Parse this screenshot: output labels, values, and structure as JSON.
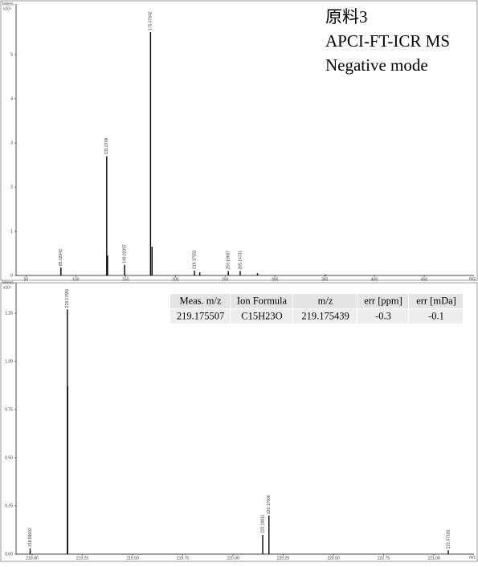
{
  "chart_data": [
    {
      "type": "spectrum",
      "annotations": [
        "原料3",
        "APCI-FT-ICR MS",
        "Negative mode"
      ],
      "y_label": "Intens.",
      "y_multiplier": "x10⁵",
      "x_label": "m/z",
      "color": "#000000",
      "xlim": [
        40,
        500
      ],
      "ylim": [
        0,
        6
      ],
      "xticks": [
        50,
        100,
        150,
        200,
        250,
        300,
        350,
        400,
        450
      ],
      "yticks": [
        0,
        1,
        2,
        3,
        4,
        5
      ],
      "peaks": {
        "x": [
          85.02943,
          131.0708,
          149.02397,
          175.07642,
          219.17551,
          253.19667,
          265.14731
        ],
        "values": [
          0.18,
          2.7,
          0.24,
          5.51,
          0.11,
          0.1,
          0.1
        ]
      },
      "minor_peaks": {
        "x": [
          131.9,
          176.6,
          224.5,
          282.5,
          351
        ],
        "values": [
          0.45,
          0.65,
          0.07,
          0.05,
          0.02
        ]
      }
    },
    {
      "type": "spectrum",
      "y_label": "Intens.",
      "y_multiplier": "x10⁴",
      "x_label": "m/z",
      "color": "#000000",
      "xlim": [
        218.92,
        221.2
      ],
      "ylim": [
        0,
        1.375
      ],
      "xticks": [
        {
          "value": 219,
          "label": "219.00"
        },
        219.25,
        {
          "value": 219.5,
          "label": "219.50"
        },
        219.75,
        {
          "value": 220,
          "label": "220.00"
        },
        220.25,
        {
          "value": 220.5,
          "label": "220.50"
        },
        220.75,
        {
          "value": 221,
          "label": "221.00"
        }
      ],
      "yticks": [
        {
          "value": 0,
          "label": "0.00"
        },
        0.25,
        {
          "value": 0.5,
          "label": "0.50"
        },
        0.75,
        {
          "value": 1,
          "label": "1.00"
        },
        1.25
      ],
      "peaks": {
        "x": [
          218.99002,
          219.17551,
          220.14811,
          220.17906,
          221.07183
        ],
        "values": [
          0.03,
          1.27,
          0.1,
          0.2,
          0.02
        ]
      },
      "minor_peaks": {
        "x": [
          219.177
        ],
        "values": [
          0.87
        ]
      },
      "table": {
        "columns": [
          "Meas. m/z",
          "Ion Formula",
          "m/z",
          "err [ppm]",
          "err [mDa]"
        ],
        "rows": [
          [
            "219.175507",
            "C15H23O",
            "219.175439",
            "-0.3",
            "-0.1"
          ]
        ]
      }
    }
  ]
}
